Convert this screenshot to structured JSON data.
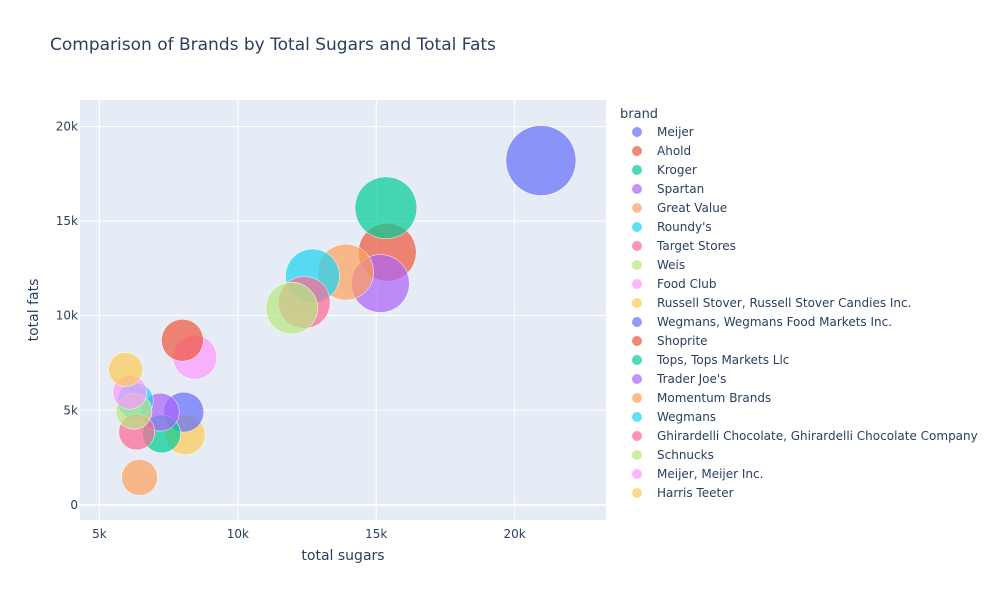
{
  "chart_data": {
    "type": "scatter",
    "title": "Comparison of Brands by Total Sugars and Total Fats",
    "xlabel": "total sugars",
    "ylabel": "total fats",
    "xlim": [
      4300,
      23300
    ],
    "ylim": [
      -800,
      21400
    ],
    "x_ticks": [
      5000,
      10000,
      15000,
      20000
    ],
    "x_tick_labels": [
      "5k",
      "10k",
      "15k",
      "20k"
    ],
    "y_ticks": [
      0,
      5000,
      10000,
      15000,
      20000
    ],
    "y_tick_labels": [
      "0",
      "5k",
      "10k",
      "15k",
      "20k"
    ],
    "grid": true,
    "legend_title": "brand",
    "legend_position": "right",
    "series": [
      {
        "name": "Meijer",
        "color": "#636efa",
        "x": 20950,
        "y": 18200,
        "size": 35
      },
      {
        "name": "Ahold",
        "color": "#EF553B",
        "x": 15400,
        "y": 13350,
        "size": 29
      },
      {
        "name": "Kroger",
        "color": "#00cc96",
        "x": 15350,
        "y": 15700,
        "size": 31
      },
      {
        "name": "Spartan",
        "color": "#ab63fa",
        "x": 15150,
        "y": 11700,
        "size": 29
      },
      {
        "name": "Great Value",
        "color": "#FFA15A",
        "x": 13900,
        "y": 12300,
        "size": 28
      },
      {
        "name": "Roundy's",
        "color": "#19d3f3",
        "x": 12700,
        "y": 12100,
        "size": 27
      },
      {
        "name": "Target Stores",
        "color": "#FF6692",
        "x": 12400,
        "y": 10700,
        "size": 26
      },
      {
        "name": "Weis",
        "color": "#B6E880",
        "x": 11950,
        "y": 10400,
        "size": 26
      },
      {
        "name": "Food Club",
        "color": "#FF97FF",
        "x": 8450,
        "y": 7800,
        "size": 22
      },
      {
        "name": "Russell Stover,  Russell Stover Candies Inc.",
        "color": "#FECB52",
        "x": 8100,
        "y": 3700,
        "size": 20
      },
      {
        "name": "Wegmans,  Wegmans Food Markets  Inc.",
        "color": "#636efa",
        "x": 8050,
        "y": 4900,
        "size": 20
      },
      {
        "name": "Shoprite",
        "color": "#EF553B",
        "x": 8000,
        "y": 8700,
        "size": 21
      },
      {
        "name": "Tops,  Tops Markets  Llc",
        "color": "#00cc96",
        "x": 7250,
        "y": 3750,
        "size": 19
      },
      {
        "name": "Trader Joe's",
        "color": "#ab63fa",
        "x": 7200,
        "y": 4900,
        "size": 19
      },
      {
        "name": "Momentum Brands",
        "color": "#FFA15A",
        "x": 6450,
        "y": 1450,
        "size": 18
      },
      {
        "name": "Wegmans",
        "color": "#19d3f3",
        "x": 6300,
        "y": 5500,
        "size": 18
      },
      {
        "name": "Ghirardelli Chocolate,  Ghirardelli Chocolate Company",
        "color": "#FF6692",
        "x": 6350,
        "y": 3850,
        "size": 18
      },
      {
        "name": "Schnucks",
        "color": "#B6E880",
        "x": 6250,
        "y": 4950,
        "size": 18
      },
      {
        "name": "Meijer,  Meijer  Inc.",
        "color": "#FF97FF",
        "x": 6100,
        "y": 5950,
        "size": 17
      },
      {
        "name": "Harris Teeter",
        "color": "#FECB52",
        "x": 5950,
        "y": 7150,
        "size": 17
      }
    ]
  }
}
